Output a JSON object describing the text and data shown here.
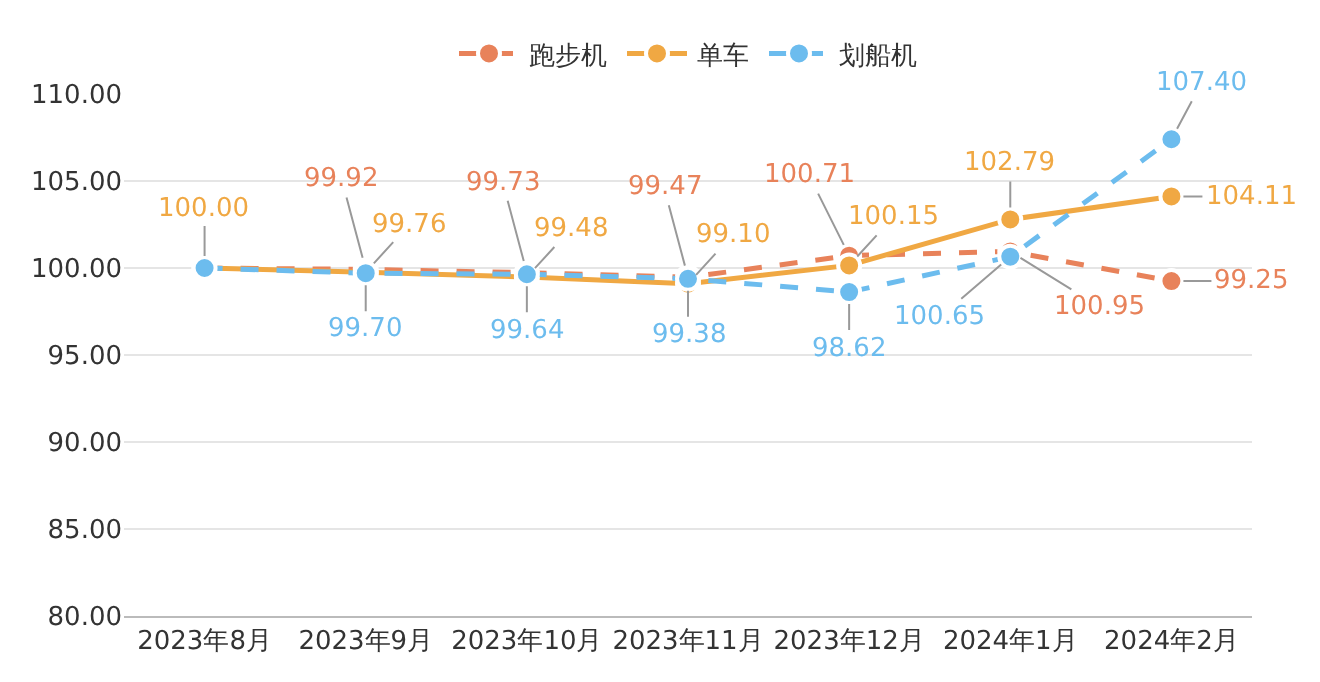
{
  "chart_data": {
    "type": "line",
    "categories": [
      "2023年8月",
      "2023年9月",
      "2023年10月",
      "2023年11月",
      "2023年12月",
      "2024年1月",
      "2024年2月"
    ],
    "series": [
      {
        "name": "跑步机",
        "color": "#e8825a",
        "line_style": "dashed",
        "values": [
          100.0,
          99.92,
          99.73,
          99.47,
          100.71,
          100.95,
          99.25
        ],
        "value_labels": [
          null,
          "99.92",
          "99.73",
          "99.47",
          "100.71",
          "100.95",
          "99.25"
        ]
      },
      {
        "name": "单车",
        "color": "#f0a843",
        "line_style": "solid",
        "values": [
          100.0,
          99.76,
          99.48,
          99.1,
          100.15,
          102.79,
          104.11
        ],
        "value_labels": [
          "100.00",
          "99.76",
          "99.48",
          "99.10",
          "100.15",
          "102.79",
          "104.11"
        ]
      },
      {
        "name": "划船机",
        "color": "#6cbcee",
        "line_style": "dashed",
        "values": [
          100.0,
          99.7,
          99.64,
          99.38,
          98.62,
          100.65,
          107.4
        ],
        "value_labels": [
          null,
          "99.70",
          "99.64",
          "99.38",
          "98.62",
          "100.65",
          "107.40"
        ]
      }
    ],
    "ylim": [
      80,
      110
    ],
    "yticks": [
      {
        "value": 80,
        "label": "80.00"
      },
      {
        "value": 85,
        "label": "85.00"
      },
      {
        "value": 90,
        "label": "90.00"
      },
      {
        "value": 95,
        "label": "95.00"
      },
      {
        "value": 100,
        "label": "100.00"
      },
      {
        "value": 105,
        "label": "105.00"
      },
      {
        "value": 110,
        "label": "110.00"
      }
    ],
    "grid": "y",
    "legend": "top",
    "marker": "circle"
  }
}
